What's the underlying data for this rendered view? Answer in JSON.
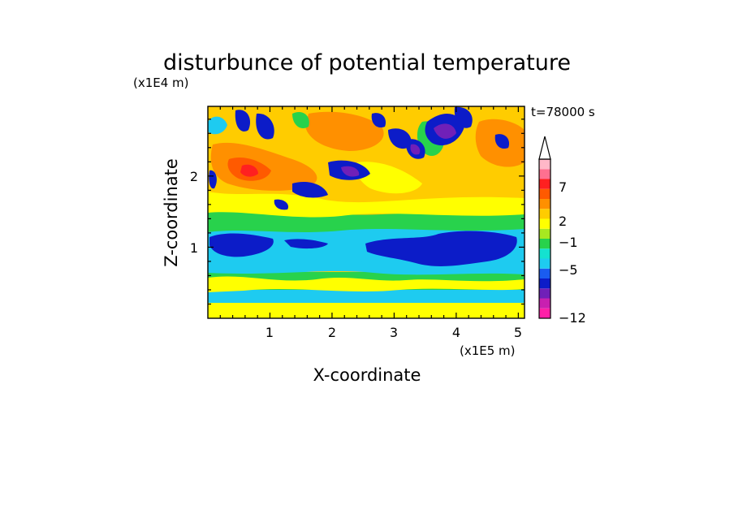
{
  "chart_data": {
    "type": "heatmap",
    "title": "disturbunce of potential temperature",
    "xlabel": "X-coordinate",
    "ylabel": "Z-coordinate",
    "x_unit": "(x1E5 m)",
    "y_unit": "(x1E4 m)",
    "time_label": "t=78000 s",
    "xlim": [
      0,
      5.1
    ],
    "ylim": [
      0,
      2.98
    ],
    "x_ticks": [
      "1",
      "2",
      "3",
      "4",
      "5"
    ],
    "x_tick_values": [
      1,
      2,
      3,
      4,
      5
    ],
    "y_ticks": [
      "1",
      "2"
    ],
    "y_tick_values": [
      1,
      2
    ],
    "colorbar": {
      "labels": [
        "7",
        "2",
        "−1",
        "−5",
        "−12"
      ],
      "label_values": [
        7,
        2,
        -1,
        -5,
        -12
      ],
      "colors": [
        "#ff20a8",
        "#c820b0",
        "#7020b8",
        "#0c1cc8",
        "#1a5cf0",
        "#1ecbf0",
        "#14e2d0",
        "#28d24c",
        "#a8e820",
        "#ffff00",
        "#ffcc00",
        "#ff9000",
        "#ff5a00",
        "#ff2020",
        "#ff7090",
        "#ffb8c8"
      ],
      "extend": "max"
    },
    "bands": [
      {
        "z_range": [
          0.0,
          0.12
        ],
        "dominant": "yellow / orange, +1 to +3"
      },
      {
        "z_range": [
          0.12,
          0.35
        ],
        "dominant": "cyan / blue, -1 to -4"
      },
      {
        "z_range": [
          0.35,
          0.6
        ],
        "dominant": "yellow / green, 0 to +2"
      },
      {
        "z_range": [
          0.6,
          1.35
        ],
        "dominant": "cyan with blue cores, -2 to -5"
      },
      {
        "z_range": [
          1.35,
          1.75
        ],
        "dominant": "green / yellow, 0 to +2"
      },
      {
        "z_range": [
          1.75,
          2.98
        ],
        "dominant": "orange / red with blue-violet cells, -8 to +8"
      }
    ]
  }
}
